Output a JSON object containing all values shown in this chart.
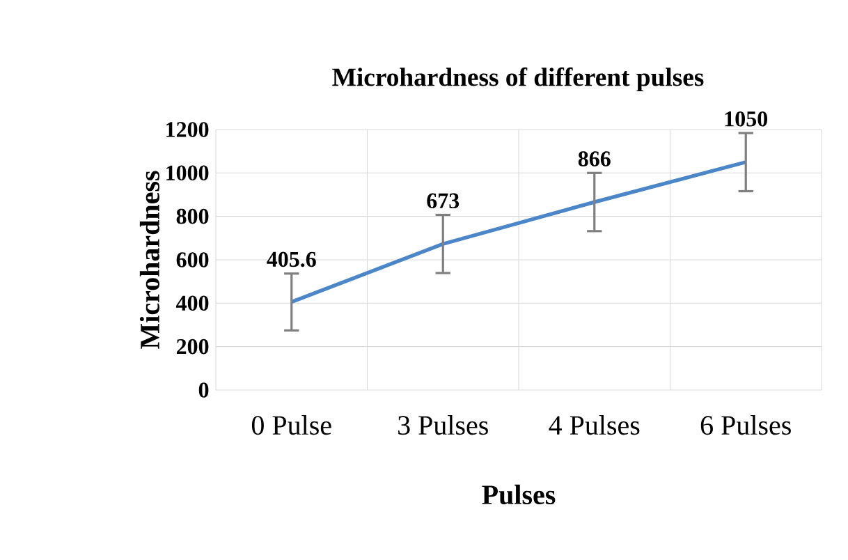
{
  "chart_data": {
    "type": "line",
    "title": "Microhardness of different pulses",
    "xlabel": "Pulses",
    "ylabel": "Microhardness",
    "categories": [
      "0 Pulse",
      "3 Pulses",
      "4 Pulses",
      "6 Pulses"
    ],
    "series": [
      {
        "color": "#4a86c8",
        "values": [
          405.6,
          673,
          866,
          1050
        ],
        "errors": [
          131,
          134,
          134,
          134
        ]
      }
    ],
    "data_labels": true,
    "ylim": [
      0,
      1200
    ],
    "yticks": [
      0,
      200,
      400,
      600,
      800,
      1000,
      1200
    ],
    "grid": true,
    "marker": "none",
    "line_style": "solid"
  }
}
